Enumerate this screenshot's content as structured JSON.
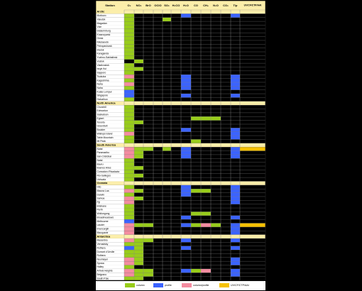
{
  "chart_data": {
    "type": "table",
    "header": {
      "station": "Station",
      "columns": [
        "O₃",
        "NO₂",
        "BrO",
        "OClO",
        "SO₂",
        "H₂CO",
        "H₂O",
        "CO",
        "CH₄",
        "N₂O",
        "CO₂",
        "T/p",
        "UV/CF/CTP/AAI"
      ]
    },
    "colors": {
      "column": "#98cc1a",
      "profile": "#3b63ff",
      "column_profile": "#f48ca0",
      "uv": "#f5c100",
      "header_bg": "#fbeeaa",
      "section_bg": "#fbeeaa",
      "cell_bg": "#000000",
      "grid": "#8a8a8a"
    },
    "legend": [
      {
        "key": "c",
        "label": "column"
      },
      {
        "key": "p",
        "label": "profile"
      },
      {
        "key": "b",
        "label": "column/profile"
      },
      {
        "key": "u",
        "label": "UV/CF/CTP/AAI"
      }
    ],
    "sections": [
      {
        "name": "Arctic",
        "stations": [
          {
            "name": "Morkovo",
            "cells": {
              "0": "c",
              "6": "p",
              "11": "p"
            }
          },
          {
            "name": "Yakutsk",
            "cells": {
              "0": "c",
              "4": "c"
            }
          },
          {
            "name": "Magadan",
            "cells": {
              "0": "c"
            }
          },
          {
            "name": "Vize",
            "cells": {
              "0": "c"
            }
          },
          {
            "name": "Ekaterinburg",
            "cells": {
              "0": "c"
            }
          },
          {
            "name": "Krasnoyarsk",
            "cells": {
              "0": "c"
            }
          },
          {
            "name": "Omsk",
            "cells": {
              "0": "c"
            }
          },
          {
            "name": "Nikolaevsk",
            "cells": {
              "0": "c"
            }
          },
          {
            "name": "Petropavlovsk",
            "cells": {
              "0": "c"
            }
          },
          {
            "name": "Irkutsk",
            "cells": {
              "0": "c"
            }
          },
          {
            "name": "Karaganda",
            "cells": {
              "0": "c"
            }
          },
          {
            "name": "Yuzhno-Sakhalinsk",
            "cells": {
              "0": "c"
            }
          },
          {
            "name": "Vostok",
            "cells": {
              "1": "c"
            }
          },
          {
            "name": "Vladivostok",
            "cells": {
              "0": "c"
            }
          },
          {
            "name": "Issyk Kul",
            "cells": {
              "0": "c",
              "1": "c"
            }
          },
          {
            "name": "Sapporo",
            "cells": {
              "0": "c"
            }
          },
          {
            "name": "Tsukuba",
            "cells": {
              "0": "b",
              "6": "p",
              "11": "p"
            }
          },
          {
            "name": "Kagoshima",
            "cells": {
              "0": "c",
              "6": "p",
              "11": "p"
            }
          },
          {
            "name": "Naha",
            "cells": {
              "0": "b",
              "6": "p",
              "11": "p"
            }
          },
          {
            "name": "Naha",
            "cells": {
              "0": "c",
              "6": "p",
              "11": "p"
            }
          },
          {
            "name": "Kuala Lumpur",
            "cells": {
              "0": "p"
            }
          },
          {
            "name": "Singapore",
            "cells": {
              "0": "p",
              "6": "p",
              "11": "p"
            }
          },
          {
            "name": "Hatuzikuo",
            "cells": {
              "0": "c"
            }
          }
        ]
      },
      {
        "name": "North America",
        "stations": [
          {
            "name": "Churchill",
            "cells": {
              "0": "c"
            }
          },
          {
            "name": "Edmonton",
            "cells": {
              "0": "c"
            }
          },
          {
            "name": "Saskatoon",
            "cells": {
              "0": "c"
            }
          },
          {
            "name": "Egbert",
            "cells": {
              "0": "c",
              "7": "c",
              "8": "c",
              "9": "c"
            }
          },
          {
            "name": "Toronto",
            "cells": {
              "0": "c",
              "1": "c"
            }
          },
          {
            "name": "Greenbelt",
            "cells": {
              "0": "c"
            }
          },
          {
            "name": "Boulder",
            "cells": {
              "0": "c",
              "6": "p",
              "11": "p"
            }
          },
          {
            "name": "Wallops Island",
            "cells": {
              "0": "b",
              "11": "p"
            }
          },
          {
            "name": "Table Mountain",
            "cells": {
              "0": "c",
              "11": "p"
            }
          },
          {
            "name": "Mt Peak",
            "cells": {
              "0": "c",
              "7": "c"
            }
          }
        ]
      },
      {
        "name": "South America",
        "stations": [
          {
            "name": "Natal",
            "cells": {
              "0": "b",
              "1": "c",
              "2": "c",
              "4": "c",
              "6": "p",
              "11": "p",
              "12": "u"
            }
          },
          {
            "name": "Paramaribo",
            "cells": {
              "0": "b",
              "1": "c",
              "6": "p",
              "11": "p"
            }
          },
          {
            "name": "San Cristóbal",
            "cells": {
              "0": "b",
              "1": "c",
              "6": "p",
              "11": "p"
            }
          },
          {
            "name": "Natal",
            "cells": {
              "0": "c"
            }
          },
          {
            "name": "Bauru",
            "cells": {
              "0": "c"
            }
          },
          {
            "name": "Buenos Aires",
            "cells": {
              "0": "c",
              "1": "c"
            }
          },
          {
            "name": "Comodoro Rivadavia",
            "cells": {
              "0": "c"
            }
          },
          {
            "name": "Rio Gallegos",
            "cells": {
              "0": "c",
              "1": "c"
            }
          },
          {
            "name": "Ushuaia",
            "cells": {
              "0": "c"
            }
          }
        ]
      },
      {
        "name": "Oceania",
        "stations": [
          {
            "name": "Hilo",
            "cells": {
              "0": "c",
              "6": "p",
              "11": "p"
            }
          },
          {
            "name": "Mauna Loa",
            "cells": {
              "0": "b",
              "1": "c",
              "6": "p",
              "7": "c",
              "8": "c",
              "11": "p"
            }
          },
          {
            "name": "Darwin",
            "cells": {
              "0": "c",
              "6": "p",
              "11": "p"
            }
          },
          {
            "name": "Samoa",
            "cells": {
              "0": "b",
              "1": "c",
              "11": "p"
            }
          },
          {
            "name": "Fiji",
            "cells": {
              "0": "b",
              "11": "p"
            }
          },
          {
            "name": "Brisbane",
            "cells": {
              "0": "c"
            }
          },
          {
            "name": "Perth",
            "cells": {
              "0": "c"
            }
          },
          {
            "name": "Wollongong",
            "cells": {
              "0": "c",
              "7": "c",
              "8": "c"
            }
          },
          {
            "name": "Broadmeadows",
            "cells": {
              "0": "c",
              "6": "p",
              "11": "p"
            }
          },
          {
            "name": "Melbourne",
            "cells": {
              "0": "p"
            }
          },
          {
            "name": "Lauder",
            "cells": {
              "0": "b",
              "1": "c",
              "2": "c",
              "6": "p",
              "7": "c",
              "8": "b",
              "9": "c",
              "11": "p",
              "12": "u"
            }
          },
          {
            "name": "Invercargill",
            "cells": {
              "0": "b",
              "11": "p"
            }
          },
          {
            "name": "Macquarie",
            "cells": {
              "0": "b",
              "11": "p"
            }
          }
        ]
      },
      {
        "name": "Antarctica",
        "stations": [
          {
            "name": "Marambio",
            "cells": {
              "0": "b",
              "1": "c",
              "2": "c",
              "6": "p",
              "11": "p"
            }
          },
          {
            "name": "Vernadsky",
            "cells": {
              "0": "c",
              "1": "c"
            }
          },
          {
            "name": "Rothera",
            "cells": {
              "0": "p",
              "1": "c",
              "6": "p",
              "11": "p"
            }
          },
          {
            "name": "Dumont d'Urville",
            "cells": {
              "0": "c",
              "1": "c"
            }
          },
          {
            "name": "Rothera",
            "cells": {
              "0": "c",
              "1": "c"
            }
          },
          {
            "name": "Neumayer",
            "cells": {
              "0": "b",
              "1": "c",
              "11": "p"
            }
          },
          {
            "name": "Syowa",
            "cells": {
              "0": "b",
              "1": "c",
              "11": "p"
            }
          },
          {
            "name": "Halley",
            "cells": {
              "0": "c"
            }
          },
          {
            "name": "Arrival Heights",
            "cells": {
              "0": "b",
              "1": "c",
              "2": "c",
              "6": "p",
              "7": "c",
              "8": "b",
              "11": "p"
            }
          },
          {
            "name": "Belgrano",
            "cells": {
              "0": "b",
              "1": "c",
              "2": "c",
              "11": "p"
            }
          },
          {
            "name": "South Pole",
            "cells": {
              "0": "c",
              "1": "c"
            }
          }
        ]
      }
    ]
  }
}
